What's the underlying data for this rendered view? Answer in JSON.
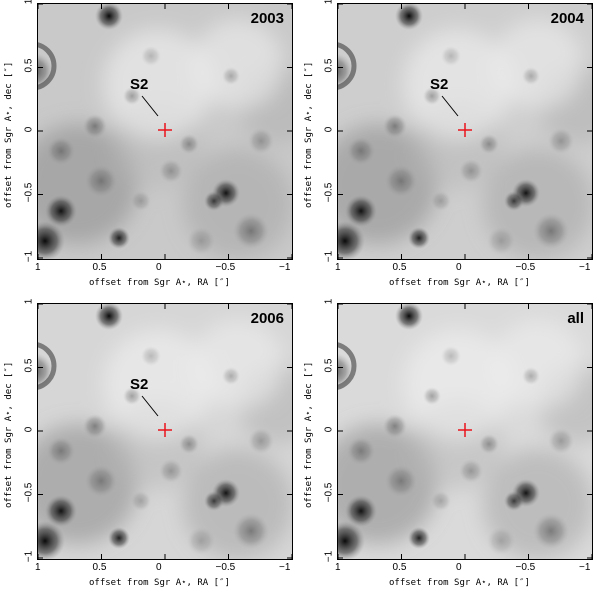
{
  "panels": [
    {
      "year": "2003",
      "show_s2": true
    },
    {
      "year": "2004",
      "show_s2": true
    },
    {
      "year": "2006",
      "show_s2": true
    },
    {
      "year": "all",
      "show_s2": false
    }
  ],
  "star_label": "S2",
  "axes": {
    "xlabel": "offset from Sgr A⋆, RA [″]",
    "ylabel": "offset from Sgr A⋆, dec [″]",
    "xticks": [
      "1",
      "0.5",
      "0",
      "−0.5",
      "−1"
    ],
    "yticks": [
      "−1",
      "−0.5",
      "0",
      "0.5",
      "1"
    ]
  },
  "marker_color": "#e8131b"
}
